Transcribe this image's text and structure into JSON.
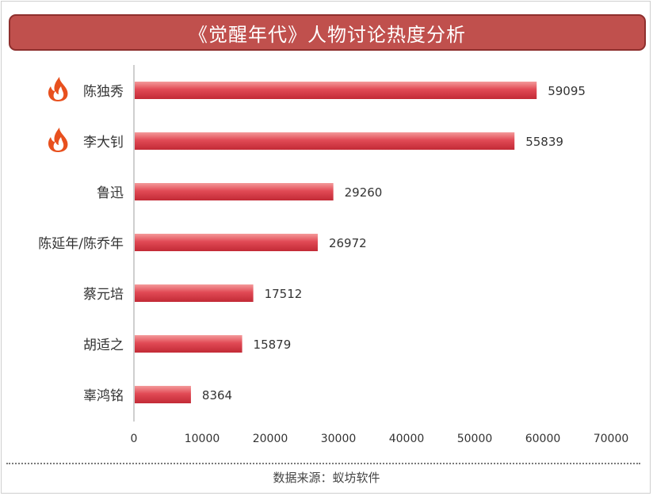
{
  "title": "《觉醒年代》人物讨论热度分析",
  "source": "数据来源：蚁坊软件",
  "colors": {
    "title_bg": "#c0504d",
    "bar_dark": "#c8313c",
    "bar_light": "#f08080",
    "flame": "#e8501e"
  },
  "chart_data": {
    "type": "bar",
    "orientation": "horizontal",
    "categories": [
      "陈独秀",
      "李大钊",
      "鲁迅",
      "陈延年/陈乔年",
      "蔡元培",
      "胡适之",
      "辜鸿铭"
    ],
    "values": [
      59095,
      55839,
      29260,
      26972,
      17512,
      15879,
      8364
    ],
    "value_labels": [
      "59095",
      "55839",
      "29260",
      "26972",
      "17512",
      "15879",
      "8364"
    ],
    "flame_marked": [
      true,
      true,
      false,
      false,
      false,
      false,
      false
    ],
    "xlim": [
      0,
      70000
    ],
    "xticks": [
      0,
      10000,
      20000,
      30000,
      40000,
      50000,
      60000,
      70000
    ],
    "xtick_labels": [
      "0",
      "10000",
      "20000",
      "30000",
      "40000",
      "50000",
      "60000",
      "70000"
    ],
    "grid": false
  }
}
